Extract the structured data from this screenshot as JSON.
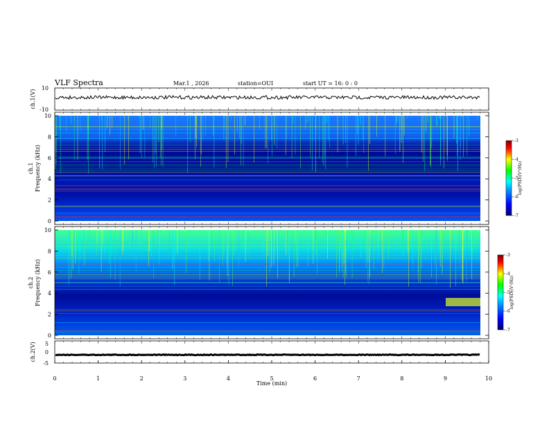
{
  "header": {
    "title": "VLF Spectra",
    "date": "Mar.1  , 2026",
    "station": "station=OUI",
    "start": "start  UT  =   16: 0  : 0"
  },
  "chart_data": [
    {
      "type": "line",
      "name": "ch1-waveform",
      "ylabel": "ch.1(V)",
      "ylim": [
        -10,
        10
      ],
      "ytick_labels": [
        "10",
        "-10"
      ],
      "baseline": 1.5
    },
    {
      "type": "heatmap",
      "name": "ch1-spectrogram",
      "ylabel": "ch.1\nFrequency  (kHz)",
      "ylim": [
        0,
        10
      ],
      "ytick_labels": [
        "0",
        "2",
        "4",
        "6",
        "8",
        "10"
      ],
      "colorbar": {
        "label": "log(PSD)(V²/Hz)",
        "range": [
          -7,
          -3
        ],
        "tick_labels": [
          "-3",
          "-4",
          "-5",
          "-6",
          "-7"
        ]
      }
    },
    {
      "type": "heatmap",
      "name": "ch2-spectrogram",
      "ylabel": "ch.2\nFrequency  (kHz)",
      "ylim": [
        0,
        10
      ],
      "ytick_labels": [
        "0",
        "2",
        "4",
        "6",
        "8",
        "10"
      ],
      "colorbar": {
        "label": "log(PSD)(V²/Hz)",
        "range": [
          -7,
          -3
        ],
        "tick_labels": [
          "-3",
          "-4",
          "-5",
          "-6",
          "-7"
        ]
      }
    },
    {
      "type": "line",
      "name": "ch2-waveform",
      "ylabel": "ch.2(V)",
      "ylim": [
        -5,
        5
      ],
      "ytick_labels": [
        "5",
        "0",
        "-5"
      ],
      "baseline": -1.3
    }
  ],
  "xaxis": {
    "xlabel": "Time  (min)",
    "xlim": [
      0,
      10
    ],
    "tick_labels": [
      "0",
      "1",
      "2",
      "3",
      "4",
      "5",
      "6",
      "7",
      "8",
      "9",
      "10"
    ]
  },
  "colors": {
    "colormap": [
      "#000070",
      "#0000ff",
      "#00a0ff",
      "#00ffff",
      "#00ff00",
      "#ffff00",
      "#ff0000",
      "#800000"
    ]
  }
}
